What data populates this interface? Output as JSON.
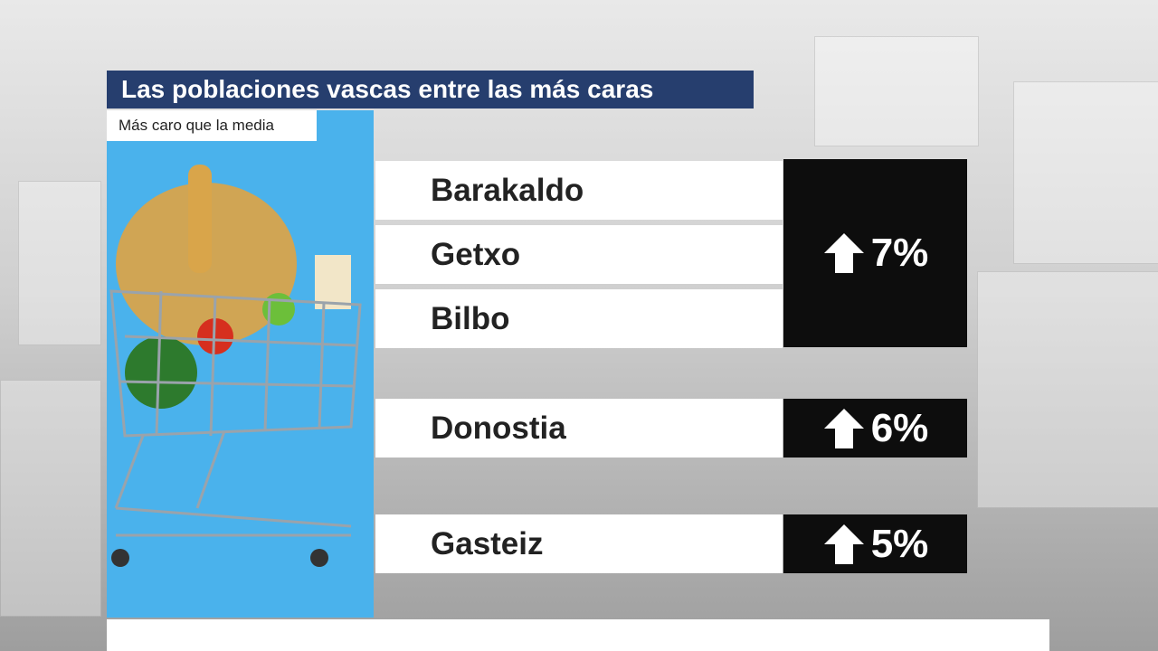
{
  "header": {
    "title": "Las poblaciones vascas entre las más caras",
    "subtitle": "Más caro que la media"
  },
  "groups": [
    {
      "cities": [
        "Barakaldo",
        "Getxo",
        "Bilbo"
      ],
      "change": "7%"
    },
    {
      "cities": [
        "Donostia"
      ],
      "change": "6%"
    },
    {
      "cities": [
        "Gasteiz"
      ],
      "change": "5%"
    }
  ]
}
